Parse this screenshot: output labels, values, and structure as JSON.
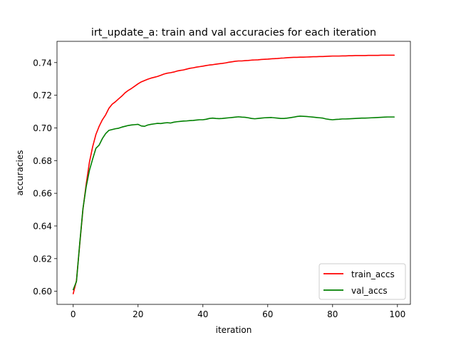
{
  "chart_data": {
    "type": "line",
    "title": "irt_update_a: train and val accuracies for each iteration",
    "xlabel": "iteration",
    "ylabel": "accuracies",
    "xlim": [
      -5,
      104
    ],
    "ylim": [
      0.592,
      0.753
    ],
    "xticks": [
      0,
      20,
      40,
      60,
      80,
      100
    ],
    "yticks": [
      0.6,
      0.62,
      0.64,
      0.66,
      0.68,
      0.7,
      0.72,
      0.74
    ],
    "ytick_labels": [
      "0.60",
      "0.62",
      "0.64",
      "0.66",
      "0.68",
      "0.70",
      "0.72",
      "0.74"
    ],
    "grid": false,
    "legend_position": "lower right",
    "series": [
      {
        "name": "train_accs",
        "color": "#ff0000",
        "x": [
          0,
          1,
          2,
          3,
          4,
          5,
          6,
          7,
          8,
          9,
          10,
          11,
          12,
          13,
          14,
          15,
          16,
          17,
          18,
          19,
          20,
          21,
          22,
          23,
          24,
          25,
          26,
          27,
          28,
          29,
          30,
          31,
          32,
          33,
          34,
          35,
          36,
          37,
          38,
          39,
          40,
          41,
          42,
          43,
          44,
          45,
          46,
          47,
          48,
          49,
          50,
          51,
          52,
          53,
          54,
          55,
          56,
          57,
          58,
          59,
          60,
          61,
          62,
          63,
          64,
          65,
          66,
          67,
          68,
          69,
          70,
          71,
          72,
          73,
          74,
          75,
          76,
          77,
          78,
          79,
          80,
          81,
          82,
          83,
          84,
          85,
          86,
          87,
          88,
          89,
          90,
          91,
          92,
          93,
          94,
          95,
          96,
          97,
          98,
          99
        ],
        "values": [
          0.5985,
          0.6065,
          0.6285,
          0.65,
          0.6655,
          0.679,
          0.6885,
          0.696,
          0.701,
          0.705,
          0.708,
          0.712,
          0.7145,
          0.716,
          0.7178,
          0.7195,
          0.7215,
          0.723,
          0.7242,
          0.7256,
          0.727,
          0.7282,
          0.729,
          0.7298,
          0.7305,
          0.731,
          0.7315,
          0.7322,
          0.733,
          0.7335,
          0.7338,
          0.7342,
          0.7348,
          0.7352,
          0.7355,
          0.736,
          0.7365,
          0.7368,
          0.7372,
          0.7375,
          0.7378,
          0.7382,
          0.7385,
          0.7387,
          0.739,
          0.7393,
          0.7395,
          0.7398,
          0.7402,
          0.7405,
          0.7408,
          0.741,
          0.741,
          0.7412,
          0.7413,
          0.7415,
          0.7416,
          0.7417,
          0.7419,
          0.742,
          0.7421,
          0.7423,
          0.7424,
          0.7425,
          0.7427,
          0.7428,
          0.743,
          0.7431,
          0.7432,
          0.7432,
          0.7433,
          0.7433,
          0.7434,
          0.7435,
          0.7436,
          0.7436,
          0.7437,
          0.7437,
          0.7438,
          0.7439,
          0.744,
          0.744,
          0.744,
          0.7441,
          0.7441,
          0.7442,
          0.7442,
          0.7443,
          0.7443,
          0.7443,
          0.7443,
          0.7444,
          0.7444,
          0.7444,
          0.7444,
          0.7445,
          0.7445,
          0.7445,
          0.7445,
          0.7445
        ]
      },
      {
        "name": "val_accs",
        "color": "#008000",
        "x": [
          0,
          1,
          2,
          3,
          4,
          5,
          6,
          7,
          8,
          9,
          10,
          11,
          12,
          13,
          14,
          15,
          16,
          17,
          18,
          19,
          20,
          21,
          22,
          23,
          24,
          25,
          26,
          27,
          28,
          29,
          30,
          31,
          32,
          33,
          34,
          35,
          36,
          37,
          38,
          39,
          40,
          41,
          42,
          43,
          44,
          45,
          46,
          47,
          48,
          49,
          50,
          51,
          52,
          53,
          54,
          55,
          56,
          57,
          58,
          59,
          60,
          61,
          62,
          63,
          64,
          65,
          66,
          67,
          68,
          69,
          70,
          71,
          72,
          73,
          74,
          75,
          76,
          77,
          78,
          79,
          80,
          81,
          82,
          83,
          84,
          85,
          86,
          87,
          88,
          89,
          90,
          91,
          92,
          93,
          94,
          95,
          96,
          97,
          98,
          99
        ],
        "values": [
          0.601,
          0.606,
          0.629,
          0.6505,
          0.664,
          0.674,
          0.681,
          0.6875,
          0.6895,
          0.6935,
          0.6965,
          0.6985,
          0.699,
          0.6995,
          0.6998,
          0.7005,
          0.701,
          0.7015,
          0.7018,
          0.702,
          0.7022,
          0.7012,
          0.701,
          0.7018,
          0.7022,
          0.7025,
          0.7028,
          0.7027,
          0.703,
          0.7032,
          0.703,
          0.7035,
          0.7038,
          0.704,
          0.7042,
          0.7043,
          0.7045,
          0.7046,
          0.7048,
          0.705,
          0.705,
          0.7053,
          0.7058,
          0.706,
          0.7058,
          0.7057,
          0.7058,
          0.706,
          0.7062,
          0.7064,
          0.7066,
          0.7068,
          0.7066,
          0.7065,
          0.7062,
          0.7058,
          0.7056,
          0.7058,
          0.706,
          0.7062,
          0.7063,
          0.7064,
          0.7062,
          0.706,
          0.7058,
          0.7058,
          0.706,
          0.7063,
          0.7066,
          0.707,
          0.7072,
          0.7071,
          0.707,
          0.7068,
          0.7066,
          0.7064,
          0.7062,
          0.706,
          0.7055,
          0.7052,
          0.705,
          0.7052,
          0.7053,
          0.7055,
          0.7055,
          0.7056,
          0.7057,
          0.7058,
          0.7059,
          0.706,
          0.706,
          0.7061,
          0.7062,
          0.7063,
          0.7064,
          0.7065,
          0.7066,
          0.7067,
          0.7067,
          0.7067
        ]
      }
    ]
  }
}
